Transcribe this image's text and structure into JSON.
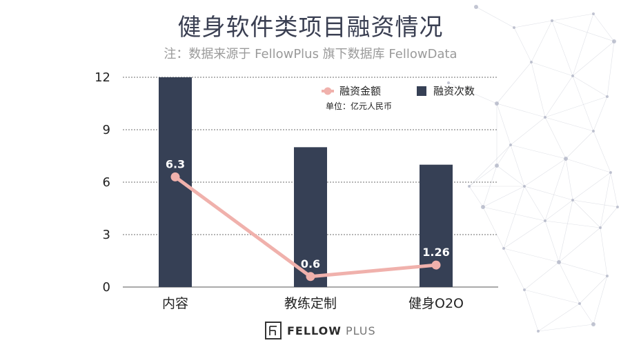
{
  "title": "健身软件类项目融资情况",
  "subtitle": "注：数据来源于 FellowPlus 旗下数据库 FellowData",
  "brand": {
    "bold": "FELLOW",
    "light": "PLUS",
    "logo_icon": "fellowplus-logo-icon"
  },
  "colors": {
    "bar": "#364055",
    "line": "#f0b1ac",
    "grid": "#6b6b6b"
  },
  "chart_data": {
    "type": "bar",
    "categories": [
      "内容",
      "教练定制",
      "健身O2O"
    ],
    "series": [
      {
        "name": "融资次数",
        "type": "bar",
        "values": [
          12,
          8,
          7
        ]
      },
      {
        "name": "融资金额",
        "type": "line",
        "values": [
          6.3,
          0.6,
          1.26
        ],
        "labels": [
          "6.3",
          "0.6",
          "1.26"
        ]
      }
    ],
    "ylim": [
      0,
      12
    ],
    "yticks": [
      "0",
      "3",
      "6",
      "9",
      "12"
    ],
    "unit_note": "单位：亿元人民币",
    "legend": [
      "融资金额",
      "融资次数"
    ],
    "legend_position": "top-right",
    "grid": true
  }
}
